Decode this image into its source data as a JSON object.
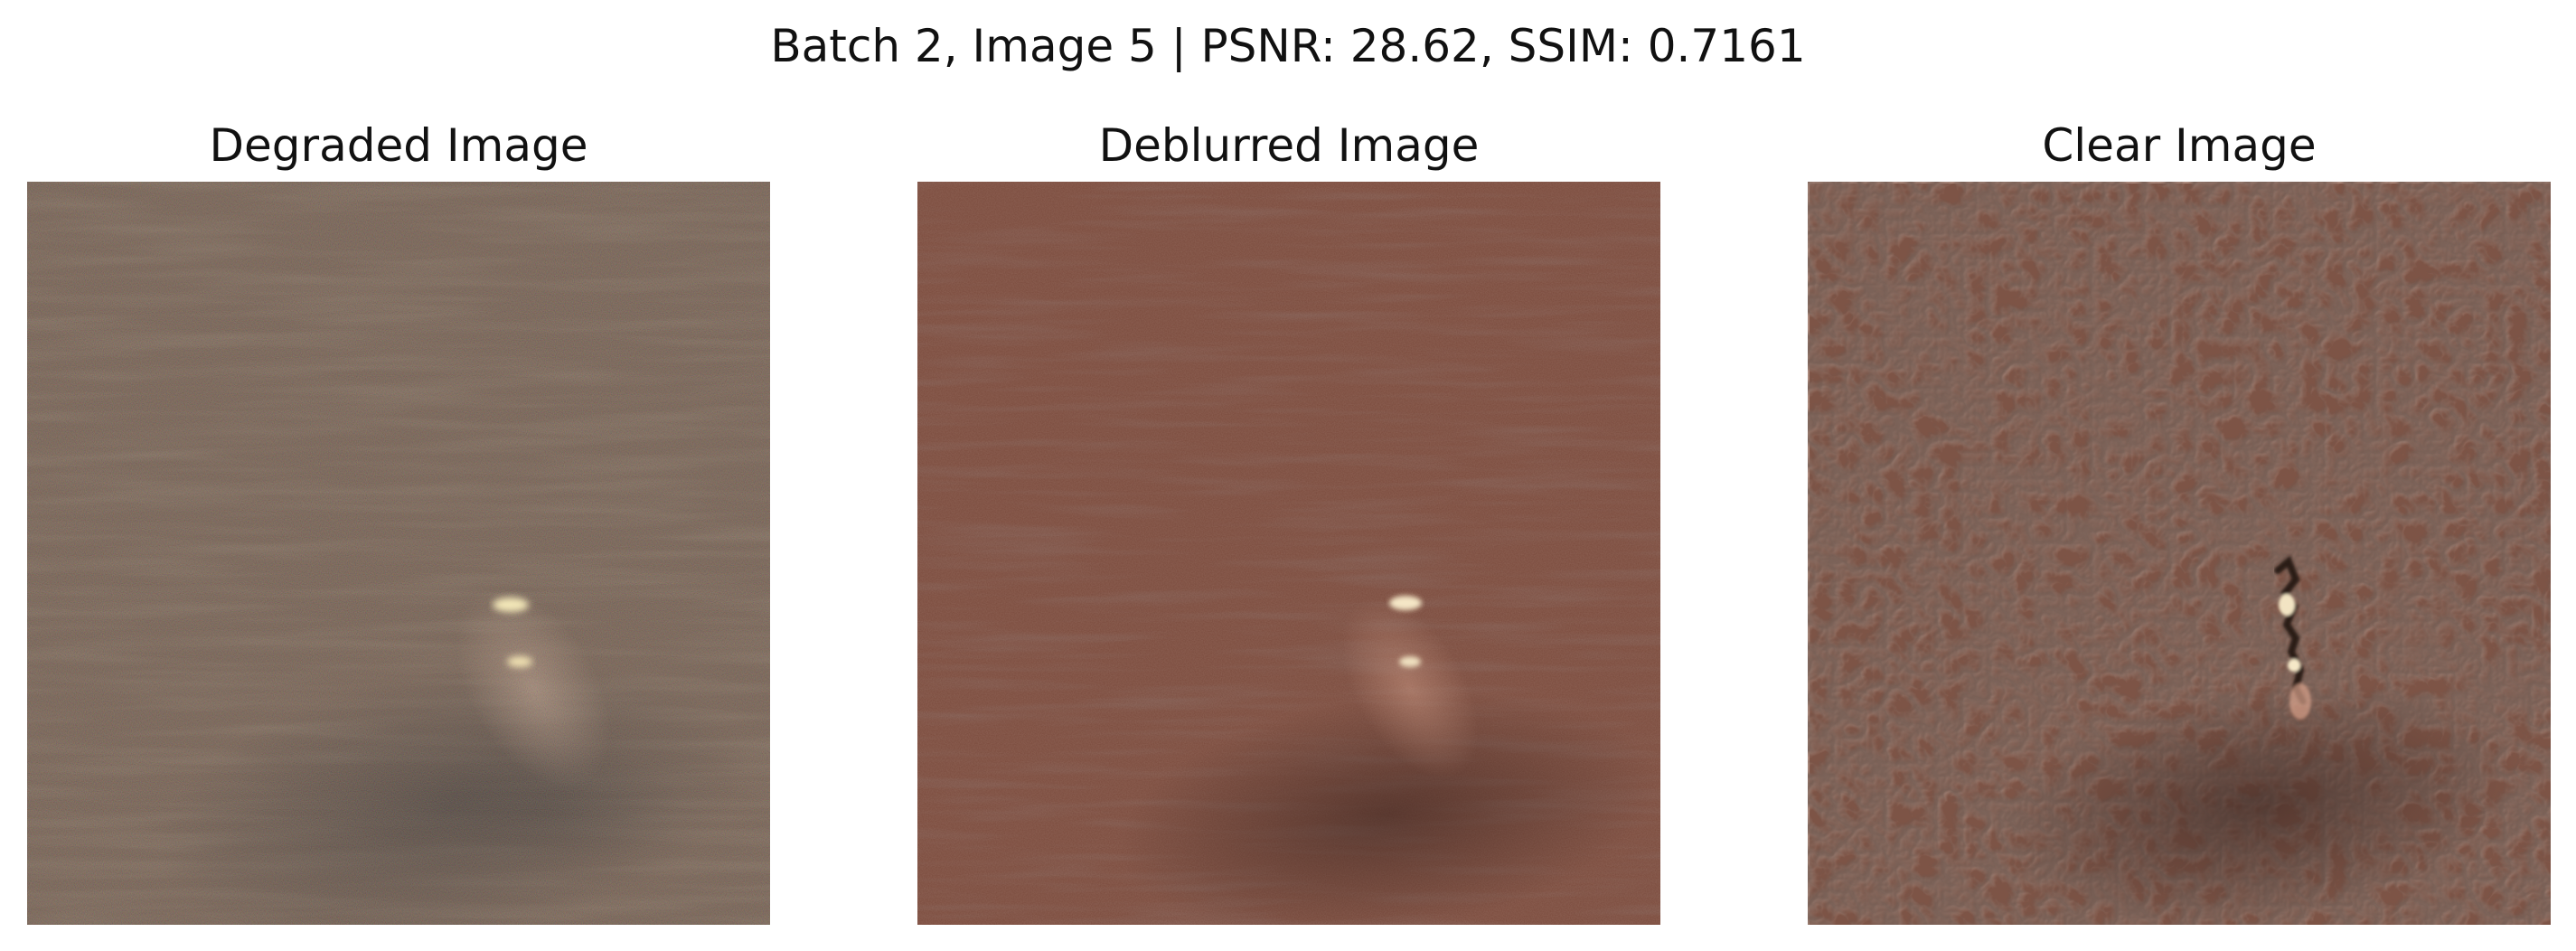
{
  "figure": {
    "title": "Batch 2, Image 5 | PSNR: 28.62, SSIM: 0.7161"
  },
  "panels": [
    {
      "title": "Degraded Image"
    },
    {
      "title": "Deblurred Image"
    },
    {
      "title": "Clear Image"
    }
  ]
}
